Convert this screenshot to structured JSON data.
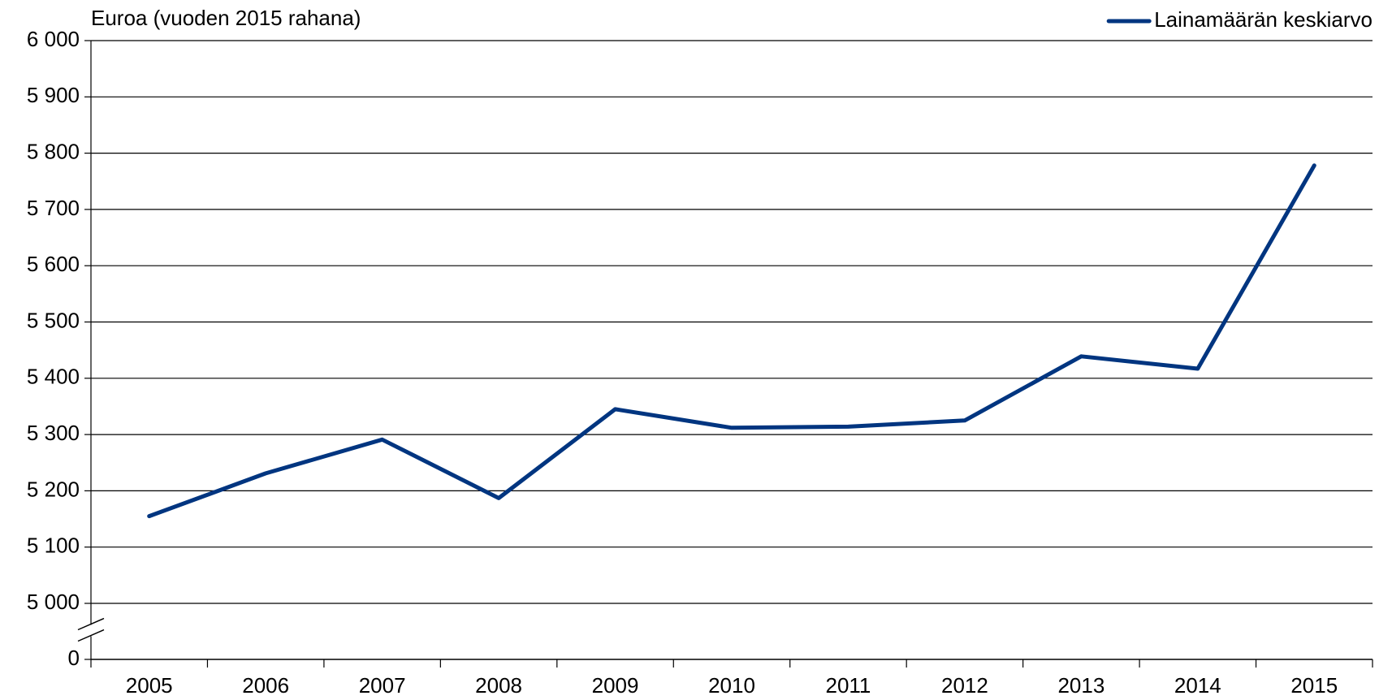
{
  "chart_data": {
    "type": "line",
    "title": "Euroa (vuoden 2015 rahana)",
    "categories": [
      "2005",
      "2006",
      "2007",
      "2008",
      "2009",
      "2010",
      "2011",
      "2012",
      "2013",
      "2014",
      "2015"
    ],
    "series": [
      {
        "name": "Lainamäärän keskiarvo",
        "color": "#003580",
        "values": [
          5155,
          5231,
          5291,
          5187,
          5345,
          5312,
          5314,
          5325,
          5439,
          5417,
          5778
        ]
      }
    ],
    "ylim": [
      5000,
      6000
    ],
    "yticks": [
      {
        "value": 0,
        "label": "0"
      },
      {
        "value": 5000,
        "label": "5 000"
      },
      {
        "value": 5100,
        "label": "5 100"
      },
      {
        "value": 5200,
        "label": "5 200"
      },
      {
        "value": 5300,
        "label": "5 300"
      },
      {
        "value": 5400,
        "label": "5 400"
      },
      {
        "value": 5500,
        "label": "5 500"
      },
      {
        "value": 5600,
        "label": "5 600"
      },
      {
        "value": 5700,
        "label": "5 700"
      },
      {
        "value": 5800,
        "label": "5 800"
      },
      {
        "value": 5900,
        "label": "5 900"
      },
      {
        "value": 6000,
        "label": "6 000"
      }
    ],
    "grid": true,
    "axis_break": true,
    "legend": "top-right"
  }
}
